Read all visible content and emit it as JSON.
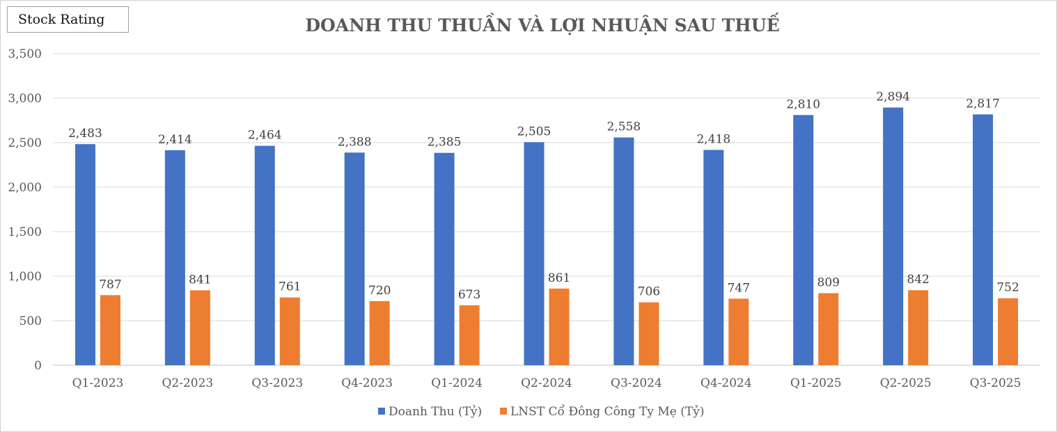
{
  "badge": {
    "label": "Stock Rating"
  },
  "colors": {
    "revenue": "#4472C4",
    "profit": "#ED7D31",
    "grid": "#d9d9d9",
    "axis": "#bfbfbf"
  },
  "chart_data": {
    "type": "bar",
    "title": "DOANH THU THUẦN VÀ LỢI NHUẬN SAU THUẾ",
    "xlabel": "",
    "ylabel": "",
    "ylim": [
      0,
      3500
    ],
    "ytick_step": 500,
    "yticks": [
      "0",
      "500",
      "1,000",
      "1,500",
      "2,000",
      "2,500",
      "3,000",
      "3,500"
    ],
    "grid": true,
    "legend_position": "bottom",
    "categories": [
      "Q1-2023",
      "Q2-2023",
      "Q3-2023",
      "Q4-2023",
      "Q1-2024",
      "Q2-2024",
      "Q3-2024",
      "Q4-2024",
      "Q1-2025",
      "Q2-2025",
      "Q3-2025"
    ],
    "series": [
      {
        "name": "Doanh Thu (Tỷ)",
        "values": [
          2483,
          2414,
          2464,
          2388,
          2385,
          2505,
          2558,
          2418,
          2810,
          2894,
          2817
        ],
        "labels": [
          "2,483",
          "2,414",
          "2,464",
          "2,388",
          "2,385",
          "2,505",
          "2,558",
          "2,418",
          "2,810",
          "2,894",
          "2,817"
        ]
      },
      {
        "name": "LNST Cổ Đông Công Ty Mẹ (Tỷ)",
        "values": [
          787,
          841,
          761,
          720,
          673,
          861,
          706,
          747,
          809,
          842,
          752
        ],
        "labels": [
          "787",
          "841",
          "761",
          "720",
          "673",
          "861",
          "706",
          "747",
          "809",
          "842",
          "752"
        ]
      }
    ]
  }
}
